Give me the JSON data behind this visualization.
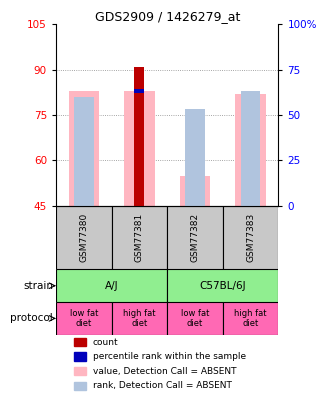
{
  "title": "GDS2909 / 1426279_at",
  "samples": [
    "GSM77380",
    "GSM77381",
    "GSM77382",
    "GSM77383"
  ],
  "ylim_left": [
    45,
    105
  ],
  "ylim_right": [
    0,
    100
  ],
  "yticks_left": [
    45,
    60,
    75,
    90,
    105
  ],
  "yticks_right": [
    0,
    25,
    50,
    75,
    100
  ],
  "ytick_labels_right": [
    "0",
    "25",
    "50",
    "75",
    "100%"
  ],
  "value_bars": [
    83,
    83,
    55,
    82
  ],
  "rank_bars": [
    81,
    null,
    77,
    83
  ],
  "count_bars": [
    null,
    91,
    null,
    null
  ],
  "percentile_bars": [
    null,
    83,
    null,
    null
  ],
  "value_color": "#FFB6C1",
  "rank_color": "#B0C4DE",
  "count_color": "#BB0000",
  "percentile_color": "#0000BB",
  "strain_color": "#90EE90",
  "protocol_color": "#FF69B4",
  "sample_box_color": "#C8C8C8",
  "legend_items": [
    {
      "color": "#BB0000",
      "label": "count"
    },
    {
      "color": "#0000BB",
      "label": "percentile rank within the sample"
    },
    {
      "color": "#FFB6C1",
      "label": "value, Detection Call = ABSENT"
    },
    {
      "color": "#B0C4DE",
      "label": "rank, Detection Call = ABSENT"
    }
  ],
  "grid_yticks": [
    60,
    75,
    90
  ],
  "background_color": "#ffffff"
}
